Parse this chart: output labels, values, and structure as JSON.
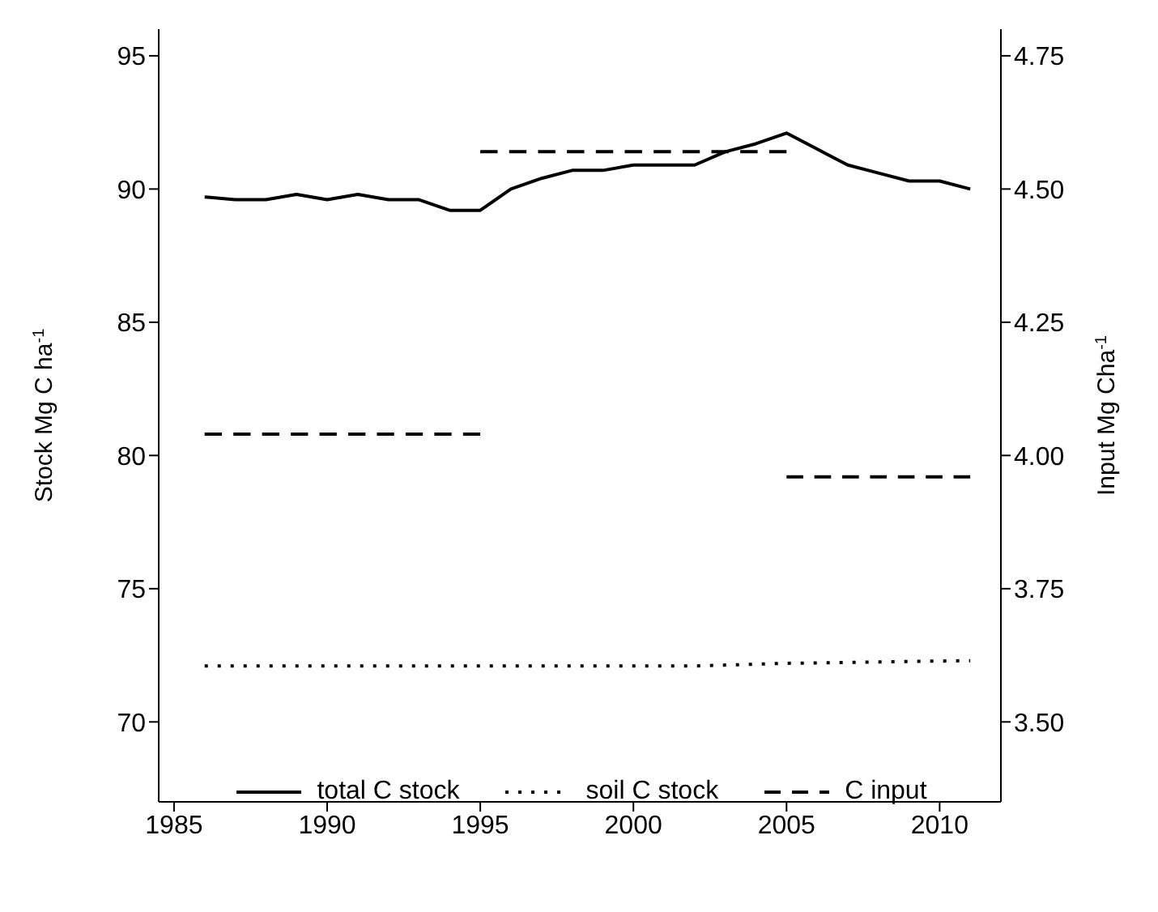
{
  "chart_data": {
    "type": "line",
    "xlabel": null,
    "ylabel": "Stock Mg C ha$^{-1}$",
    "y2label": "Input Mg Cha$^{-1}$",
    "xlim": [
      1984.5,
      2012
    ],
    "xticks": [
      1985,
      1990,
      1995,
      2000,
      2005,
      2010
    ],
    "ylim": [
      67,
      96
    ],
    "yticks": [
      70,
      75,
      80,
      85,
      90,
      95
    ],
    "y2lim": [
      3.35,
      4.8
    ],
    "y2ticks": [
      {
        "value": 3.5,
        "label": "3.50"
      },
      {
        "value": 3.75,
        "label": "3.75"
      },
      {
        "value": 4,
        "label": "4.00"
      },
      {
        "value": 4.25,
        "label": "4.25"
      },
      {
        "value": 4.5,
        "label": "4.50"
      },
      {
        "value": 4.75,
        "label": "4.75"
      }
    ],
    "legend": "bottom",
    "marker": "none",
    "series": [
      {
        "name": "total C stock",
        "color": "#000000",
        "line_style": "solid",
        "x": [
          1986,
          1987,
          1988,
          1989,
          1990,
          1991,
          1992,
          1993,
          1994,
          1995,
          1996,
          1997,
          1998,
          1999,
          2000,
          2001,
          2002,
          2003,
          2004,
          2005,
          2006,
          2007,
          2008,
          2009,
          2010,
          2011
        ],
        "values": [
          89.7,
          89.6,
          89.6,
          89.8,
          89.6,
          89.8,
          89.6,
          89.6,
          89.2,
          89.2,
          90.0,
          90.4,
          90.7,
          90.7,
          90.9,
          90.9,
          90.9,
          91.4,
          91.7,
          92.1,
          91.5,
          90.9,
          90.6,
          90.3,
          90.3,
          90.0
        ]
      },
      {
        "name": "soil C stock",
        "color": "#000000",
        "line_style": "dotted",
        "x": [
          1986,
          2002,
          2005,
          2011
        ],
        "values": [
          72.1,
          72.1,
          72.2,
          72.3
        ]
      },
      {
        "name": "C input",
        "color": "#000000",
        "line_style": "dashed",
        "axis": "y2",
        "x": [
          1986,
          1995
        ],
        "values": [
          4.04,
          4.04
        ]
      },
      {
        "color": "#000000",
        "line_style": "dashed",
        "axis": "y2",
        "x": [
          1995,
          2005
        ],
        "values": [
          4.57,
          4.57
        ]
      },
      {
        "color": "#000000",
        "line_style": "dashed",
        "axis": "y2",
        "x": [
          2005,
          2011
        ],
        "values": [
          3.96,
          3.96
        ]
      }
    ]
  }
}
